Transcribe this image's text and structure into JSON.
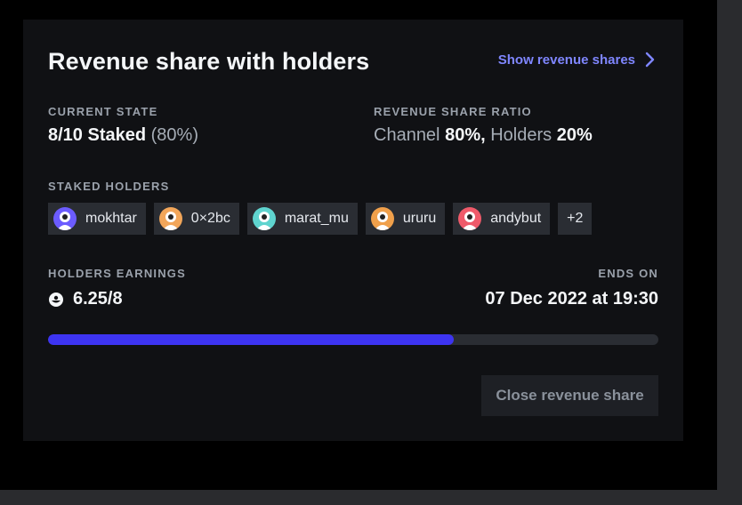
{
  "card": {
    "title": "Revenue share with holders",
    "show_link": "Show revenue shares",
    "current_state": {
      "label": "CURRENT STATE",
      "value": "8/10 Staked",
      "percent": "(80%)"
    },
    "ratio": {
      "label": "REVENUE SHARE RATIO",
      "channel_label": "Channel",
      "channel_value": "80%,",
      "holders_label": "Holders",
      "holders_value": "20%"
    },
    "staked_holders": {
      "label": "STAKED HOLDERS",
      "holders": [
        {
          "name": "mokhtar",
          "color": "#6c5cff"
        },
        {
          "name": "0×2bc",
          "color": "#f2a65a"
        },
        {
          "name": "marat_mu",
          "color": "#5fd4cf"
        },
        {
          "name": "ururu",
          "color": "#f0a04b"
        },
        {
          "name": "andybut",
          "color": "#ef5a6a"
        }
      ],
      "more": "+2"
    },
    "earnings": {
      "label": "HOLDERS EARNINGS",
      "value": "6.25/8",
      "icon": "joystream-token-icon"
    },
    "ends_on": {
      "label": "ENDS ON",
      "value": "07 Dec 2022 at 19:30"
    },
    "progress": 0.665,
    "close_button": "Close revenue share"
  },
  "colors": {
    "accent": "#7f86ff",
    "progress_fill": "#3d34f2",
    "card_bg": "#101114",
    "chip_bg": "#2a2d33"
  }
}
